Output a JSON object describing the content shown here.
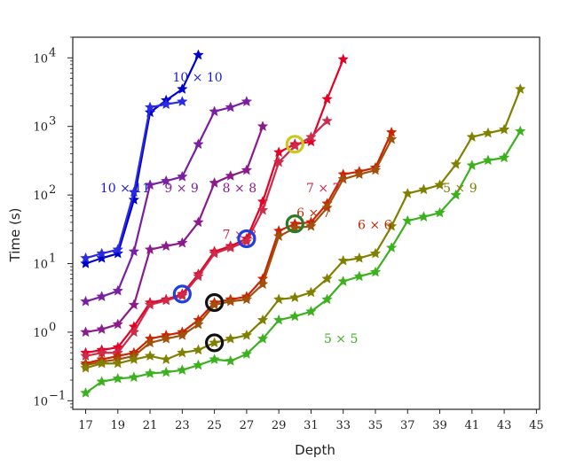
{
  "chart_data": {
    "type": "line",
    "title": "",
    "xlabel": "Depth",
    "ylabel": "Time (s)",
    "xlim": [
      16.2,
      45.2
    ],
    "ylim": [
      0.075,
      20000
    ],
    "y_scale": "log",
    "grid": false,
    "legend": "inline labels",
    "x_ticks": [
      17,
      19,
      21,
      23,
      25,
      27,
      29,
      31,
      33,
      35,
      37,
      39,
      41,
      43,
      45
    ],
    "y_ticks": [
      {
        "value": 0.1,
        "base": "10",
        "exp": "−1"
      },
      {
        "value": 1,
        "base": "10",
        "exp": "0"
      },
      {
        "value": 10,
        "base": "10",
        "exp": "1"
      },
      {
        "value": 100,
        "base": "10",
        "exp": "2"
      },
      {
        "value": 1000,
        "base": "10",
        "exp": "3"
      },
      {
        "value": 10000,
        "base": "10",
        "exp": "4"
      }
    ],
    "series": [
      {
        "color": "#0000cc",
        "x": [
          17,
          18,
          19,
          20,
          21,
          22,
          23,
          24
        ],
        "y": [
          10,
          12,
          14,
          85,
          1600,
          2400,
          3500,
          11000
        ]
      },
      {
        "color": "#2a2ae0",
        "x": [
          17,
          18,
          19,
          20,
          21,
          22,
          23
        ],
        "y": [
          12,
          14,
          16,
          110,
          1900,
          2100,
          2300
        ]
      },
      {
        "color": "#7a1fa2",
        "x": [
          17,
          18,
          19,
          20,
          21,
          22,
          23,
          24,
          25,
          26,
          27
        ],
        "y": [
          2.8,
          3.3,
          4,
          15,
          140,
          160,
          185,
          550,
          1650,
          1900,
          2300
        ]
      },
      {
        "color": "#8b1a8b",
        "x": [
          17,
          18,
          19,
          20,
          21,
          22,
          23,
          24,
          25,
          26,
          27,
          28
        ],
        "y": [
          1,
          1.1,
          1.3,
          2.5,
          16,
          18,
          20,
          40,
          150,
          190,
          230,
          1000
        ]
      },
      {
        "color": "#e60026",
        "x": [
          17,
          18,
          19,
          20,
          21,
          22,
          23,
          24,
          25,
          26,
          27,
          28,
          29,
          30,
          31,
          32,
          33
        ],
        "y": [
          0.5,
          0.55,
          0.6,
          1.2,
          2.7,
          3,
          3.6,
          7,
          15,
          18,
          23,
          80,
          420,
          550,
          600,
          2500,
          9500
        ]
      },
      {
        "color": "#cc2b4a",
        "x": [
          17,
          18,
          19,
          20,
          21,
          22,
          23,
          24,
          25,
          26,
          27,
          28,
          29,
          30,
          31,
          32
        ],
        "y": [
          0.45,
          0.5,
          0.5,
          1,
          2.5,
          2.9,
          3.4,
          6.5,
          14,
          17,
          21,
          60,
          300,
          520,
          700,
          1200
        ]
      },
      {
        "color": "#cc2200",
        "x": [
          17,
          18,
          19,
          20,
          21,
          22,
          23,
          24,
          25,
          26,
          27,
          28,
          29,
          30,
          31,
          32,
          33,
          34,
          35,
          36
        ],
        "y": [
          0.35,
          0.4,
          0.45,
          0.5,
          0.8,
          0.9,
          1,
          1.5,
          2.7,
          3,
          3.3,
          6,
          30,
          38,
          40,
          75,
          200,
          220,
          250,
          820
        ]
      },
      {
        "color": "#a0520d",
        "x": [
          17,
          18,
          19,
          20,
          21,
          22,
          23,
          24,
          25,
          26,
          27,
          28,
          29,
          30,
          31,
          32,
          33,
          34,
          35,
          36
        ],
        "y": [
          0.33,
          0.37,
          0.4,
          0.45,
          0.7,
          0.8,
          0.9,
          1.3,
          2.5,
          2.8,
          3,
          5,
          25,
          33,
          35,
          65,
          170,
          200,
          230,
          650
        ]
      },
      {
        "color": "#808000",
        "x": [
          17,
          18,
          19,
          20,
          21,
          22,
          23,
          24,
          25,
          26,
          27,
          28,
          29,
          30,
          31,
          32,
          33,
          34,
          35,
          36,
          37,
          38,
          39,
          40,
          41,
          42,
          43,
          44
        ],
        "y": [
          0.3,
          0.35,
          0.35,
          0.4,
          0.45,
          0.4,
          0.5,
          0.55,
          0.7,
          0.8,
          0.9,
          1.5,
          3,
          3.2,
          3.8,
          6,
          11,
          12,
          14,
          35,
          105,
          120,
          140,
          280,
          700,
          800,
          900,
          3500
        ]
      },
      {
        "color": "#3cb01e",
        "x": [
          17,
          18,
          19,
          20,
          21,
          22,
          23,
          24,
          25,
          26,
          27,
          28,
          29,
          30,
          31,
          32,
          33,
          34,
          35,
          36,
          37,
          38,
          39,
          40,
          41,
          42,
          43,
          44
        ],
        "y": [
          0.13,
          0.19,
          0.21,
          0.22,
          0.25,
          0.26,
          0.28,
          0.33,
          0.4,
          0.38,
          0.48,
          0.8,
          1.5,
          1.7,
          2,
          3,
          5.5,
          6.5,
          7.5,
          17,
          42,
          48,
          55,
          100,
          270,
          320,
          350,
          850
        ]
      }
    ],
    "series_labels": [
      {
        "text": "10 × 10",
        "x": 22.4,
        "y": 4500,
        "color": "#1a1ad0"
      },
      {
        "text": "10 × 11",
        "x": 17.9,
        "y": 110,
        "color": "#1a1ad0"
      },
      {
        "text": "9 × 9",
        "x": 21.9,
        "y": 110,
        "color": "#7a1fa2"
      },
      {
        "text": "8 × 8",
        "x": 25.5,
        "y": 110,
        "color": "#8b1a8b"
      },
      {
        "text": "7 × 8",
        "x": 25.5,
        "y": 23,
        "color": "#cc2b4a"
      },
      {
        "text": "7 × 7",
        "x": 30.7,
        "y": 110,
        "color": "#cc2b4a"
      },
      {
        "text": "6 × 7",
        "x": 30.1,
        "y": 48,
        "color": "#cc2200"
      },
      {
        "text": "6 × 6",
        "x": 33.9,
        "y": 32,
        "color": "#cc2200"
      },
      {
        "text": "5 × 9",
        "x": 39.2,
        "y": 110,
        "color": "#808000"
      },
      {
        "text": "5 × 5",
        "x": 31.8,
        "y": 0.7,
        "color": "#3cb01e"
      }
    ],
    "highlight_circles": [
      {
        "x": 23,
        "y": 3.6,
        "color": "#1f3fe0"
      },
      {
        "x": 27,
        "y": 23,
        "color": "#1f3fe0"
      },
      {
        "x": 30,
        "y": 550,
        "color": "#c8c81e"
      },
      {
        "x": 30,
        "y": 38,
        "color": "#2a7a2a"
      },
      {
        "x": 25,
        "y": 2.7,
        "color": "#111111"
      },
      {
        "x": 25,
        "y": 0.7,
        "color": "#111111"
      }
    ]
  }
}
